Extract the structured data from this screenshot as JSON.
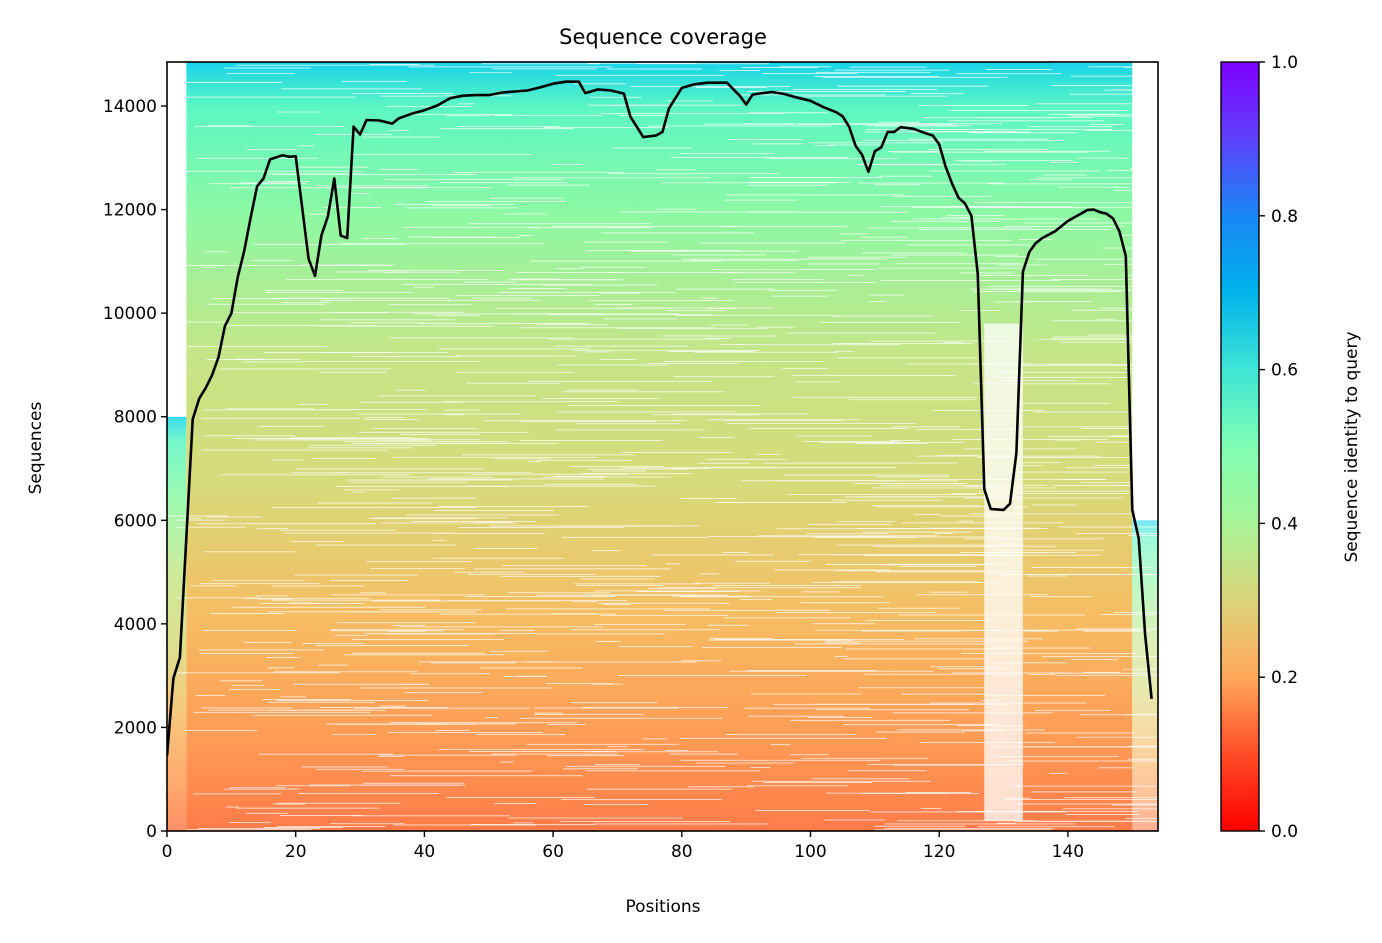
{
  "chart_data": {
    "type": "heatmap",
    "title": "Sequence coverage",
    "xlabel": "Positions",
    "ylabel": "Sequences",
    "xlim": [
      0,
      154
    ],
    "ylim": [
      0,
      14850
    ],
    "x_ticks": [
      0,
      20,
      40,
      60,
      80,
      100,
      120,
      140
    ],
    "y_ticks": [
      0,
      2000,
      4000,
      6000,
      8000,
      10000,
      12000,
      14000
    ],
    "colorbar": {
      "label": "Sequence identity to query",
      "range": [
        0,
        1
      ],
      "ticks": [
        0.0,
        0.2,
        0.4,
        0.6,
        0.8,
        1.0
      ],
      "tick_labels": [
        "0.0",
        "0.2",
        "0.4",
        "0.6",
        "0.8",
        "1.0"
      ],
      "colormap": "rainbow"
    },
    "heatmap_description": "Aligned sequences sorted by identity to query; color goes from orange-red (low identity, bottom) to cyan (high identity, top)",
    "coverage_line": {
      "color": "#000000",
      "x": [
        0,
        1,
        2,
        4,
        5,
        6,
        7,
        8,
        9,
        10,
        11,
        12,
        13,
        14,
        15,
        16,
        18,
        19,
        20,
        21,
        22,
        23,
        24,
        25,
        26,
        27,
        28,
        29,
        30,
        31,
        33,
        35,
        36,
        38,
        40,
        42,
        44,
        46,
        48,
        50,
        52,
        54,
        56,
        58,
        60,
        62,
        64,
        65,
        67,
        69,
        71,
        72,
        74,
        76,
        77,
        78,
        80,
        82,
        84,
        87,
        89,
        90,
        91,
        92,
        94,
        96,
        98,
        100,
        102,
        104,
        105,
        106,
        107,
        108,
        109,
        110,
        111,
        112,
        113,
        114,
        116,
        118,
        119,
        120,
        121,
        122,
        123,
        124,
        125,
        126,
        127,
        128,
        130,
        131,
        132,
        133,
        134,
        135,
        136,
        138,
        140,
        142,
        143,
        144,
        145,
        146,
        147,
        148,
        149,
        150,
        151,
        152,
        153
      ],
      "y": [
        1450,
        2950,
        3350,
        7950,
        8350,
        8550,
        8800,
        9150,
        9750,
        10000,
        10700,
        11200,
        11850,
        12450,
        12600,
        12970,
        13050,
        13020,
        13030,
        12050,
        11050,
        10720,
        11500,
        11870,
        12600,
        11500,
        11450,
        13600,
        13450,
        13730,
        13720,
        13660,
        13760,
        13850,
        13920,
        14010,
        14150,
        14200,
        14210,
        14210,
        14260,
        14280,
        14300,
        14360,
        14430,
        14470,
        14470,
        14250,
        14320,
        14300,
        14240,
        13800,
        13400,
        13430,
        13500,
        13950,
        14350,
        14420,
        14450,
        14450,
        14200,
        14030,
        14220,
        14240,
        14270,
        14230,
        14160,
        14100,
        13980,
        13880,
        13800,
        13600,
        13230,
        13060,
        12730,
        13130,
        13200,
        13500,
        13500,
        13590,
        13560,
        13470,
        13430,
        13260,
        12830,
        12500,
        12230,
        12120,
        11880,
        10750,
        6600,
        6220,
        6200,
        6320,
        7300,
        10800,
        11180,
        11350,
        11450,
        11580,
        11780,
        11920,
        11990,
        12000,
        11950,
        11920,
        11830,
        11580,
        11100,
        6200,
        5650,
        3800,
        2550
      ]
    }
  }
}
